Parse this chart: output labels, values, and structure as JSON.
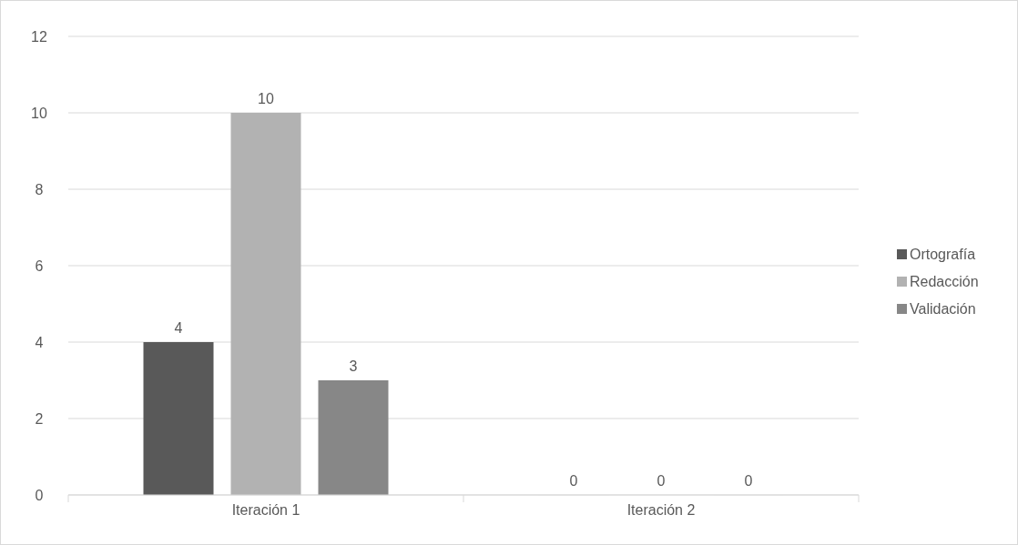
{
  "chart_data": {
    "type": "bar",
    "categories": [
      "Iteración 1",
      "Iteración 2"
    ],
    "series": [
      {
        "name": "Ortografía",
        "color": "#595959",
        "values": [
          4,
          0
        ]
      },
      {
        "name": "Redacción",
        "color": "#b2b2b2",
        "values": [
          10,
          0
        ]
      },
      {
        "name": "Validación",
        "color": "#878787",
        "values": [
          3,
          0
        ]
      }
    ],
    "ylim": [
      0,
      12
    ],
    "yticks": [
      0,
      2,
      4,
      6,
      8,
      10,
      12
    ],
    "grid": "y",
    "legend": "right",
    "data_labels": true
  }
}
